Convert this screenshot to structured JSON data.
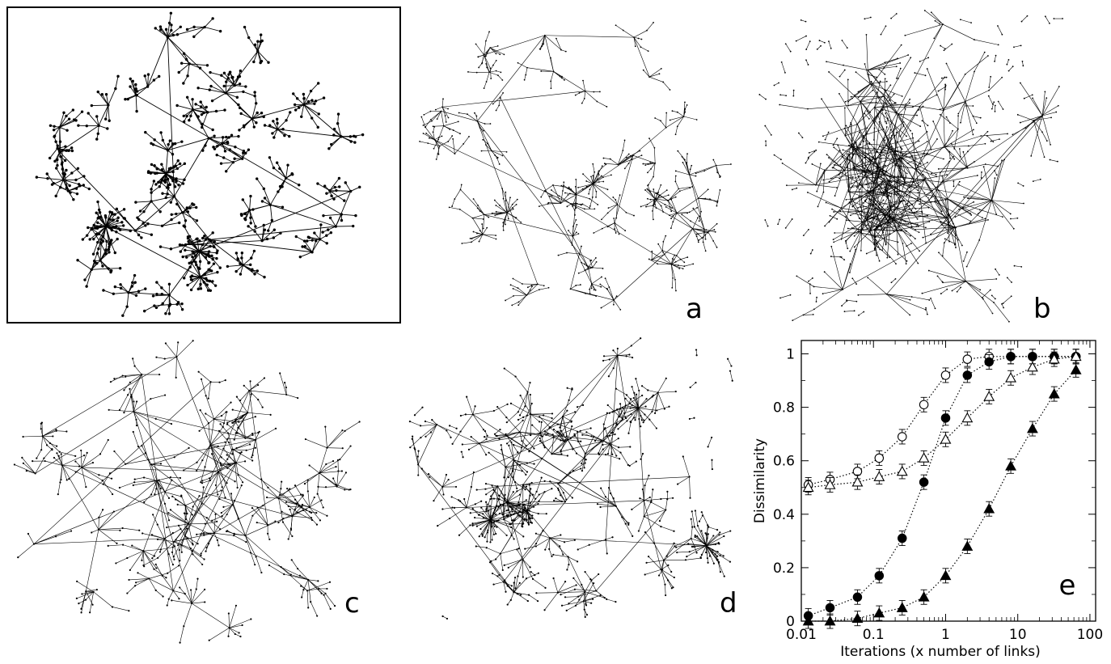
{
  "panels": [
    {
      "id": "net-orig",
      "label": ""
    },
    {
      "id": "net-a",
      "label": "a"
    },
    {
      "id": "net-b",
      "label": "b"
    },
    {
      "id": "net-c",
      "label": "c"
    },
    {
      "id": "net-d",
      "label": "d"
    }
  ],
  "panel_labels": {
    "a": "a",
    "b": "b",
    "c": "c",
    "d": "d",
    "e": "e"
  },
  "chart_data": {
    "type": "scatter",
    "panel_label": "e",
    "xlabel": "Iterations (x number of links)",
    "ylabel": "Dissimilarity",
    "xscale": "log",
    "xlim": [
      0.01,
      120
    ],
    "ylim": [
      0,
      1.05
    ],
    "x_ticks": [
      0.01,
      0.1,
      1,
      10,
      100
    ],
    "x_tick_labels": [
      "0.01",
      "0.1",
      "1",
      "10",
      "100"
    ],
    "y_ticks": [
      0,
      0.2,
      0.4,
      0.6,
      0.8,
      1
    ],
    "y_tick_labels": [
      "0",
      "0.2",
      "0.4",
      "0.6",
      "0.8",
      "1"
    ],
    "grid": false,
    "series": [
      {
        "marker": "open-circle",
        "x": [
          0.0125,
          0.025,
          0.06,
          0.12,
          0.25,
          0.5,
          1,
          2,
          4,
          8,
          16,
          32,
          64
        ],
        "y": [
          0.51,
          0.53,
          0.56,
          0.61,
          0.69,
          0.81,
          0.92,
          0.98,
          0.99,
          0.99,
          0.99,
          0.99,
          0.99
        ]
      },
      {
        "marker": "filled-circle",
        "x": [
          0.0125,
          0.025,
          0.06,
          0.12,
          0.25,
          0.5,
          1,
          2,
          4,
          8,
          16,
          32,
          64
        ],
        "y": [
          0.02,
          0.05,
          0.09,
          0.17,
          0.31,
          0.52,
          0.76,
          0.92,
          0.97,
          0.99,
          0.99,
          0.99,
          0.99
        ]
      },
      {
        "marker": "open-triangle",
        "x": [
          0.0125,
          0.025,
          0.06,
          0.12,
          0.25,
          0.5,
          1,
          2,
          4,
          8,
          16,
          32,
          64
        ],
        "y": [
          0.5,
          0.51,
          0.52,
          0.54,
          0.56,
          0.61,
          0.68,
          0.76,
          0.84,
          0.91,
          0.95,
          0.98,
          0.99
        ]
      },
      {
        "marker": "filled-triangle",
        "x": [
          0.0125,
          0.025,
          0.06,
          0.12,
          0.25,
          0.5,
          1,
          2,
          4,
          8,
          16,
          32,
          64
        ],
        "y": [
          0.0,
          0.0,
          0.01,
          0.03,
          0.05,
          0.09,
          0.17,
          0.28,
          0.42,
          0.58,
          0.72,
          0.85,
          0.94
        ]
      }
    ]
  }
}
